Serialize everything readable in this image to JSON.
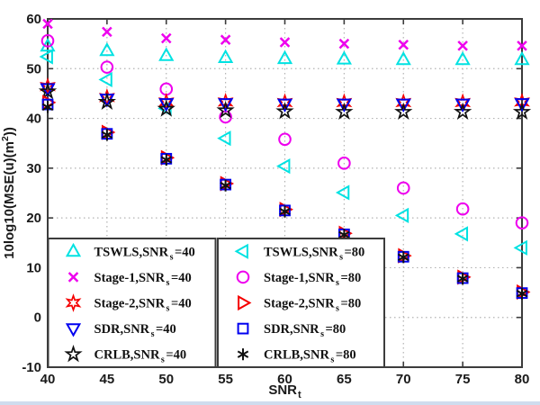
{
  "figure": {
    "background": "#ffffff",
    "frame_color": "#3c3c3c",
    "grid_color": "#b2b2b2",
    "text_color": "#1a1a1a",
    "window_edge_color": "#cfdcee"
  },
  "chart_data": {
    "type": "scatter",
    "title": "",
    "xlabel": {
      "pre": "SNR",
      "sub": "t"
    },
    "ylabel": {
      "pre": "10log10(MSE(u)(m",
      "sup": "2",
      "post": "))"
    },
    "xlim": [
      40,
      80
    ],
    "ylim": [
      -10,
      60
    ],
    "xticks": [
      40,
      45,
      50,
      55,
      60,
      65,
      70,
      75,
      80
    ],
    "yticks": [
      -10,
      0,
      10,
      20,
      30,
      40,
      50,
      60
    ],
    "grid": true,
    "x": [
      40,
      45,
      50,
      55,
      60,
      65,
      70,
      75,
      80
    ],
    "series": [
      {
        "id": "tswls-snrs40",
        "name": "TSWLS,SNR_s=40",
        "label": {
          "pre": "TSWLS,SNR",
          "sub": "s",
          "post": "=40"
        },
        "marker": "triangle-up",
        "color": "#00e2e2",
        "values": [
          54.5,
          53.6,
          52.6,
          52.2,
          52.0,
          51.9,
          51.8,
          51.8,
          51.8
        ]
      },
      {
        "id": "stage1-snrs40",
        "name": "Stage-1,SNR_s=40",
        "label": {
          "pre": "Stage-1,SNR",
          "sub": "s",
          "post": "=40"
        },
        "marker": "cross",
        "color": "#ee00ee",
        "values": [
          59.0,
          57.4,
          56.1,
          55.8,
          55.3,
          55.0,
          54.8,
          54.6,
          54.6
        ]
      },
      {
        "id": "stage2-snrs40",
        "name": "Stage-2,SNR_s=40",
        "label": {
          "pre": "Stage-2,SNR",
          "sub": "s",
          "post": "=40"
        },
        "marker": "hexagram",
        "color": "#f50000",
        "values": [
          46.4,
          44.2,
          43.3,
          43.3,
          43.2,
          43.2,
          43.2,
          43.2,
          43.3
        ]
      },
      {
        "id": "sdr-snrs40",
        "name": "SDR,SNR_s=40",
        "label": {
          "pre": "SDR,SNR",
          "sub": "s",
          "post": "=40"
        },
        "marker": "triangle-down",
        "color": "#0000f0",
        "values": [
          46.0,
          43.9,
          43.0,
          43.0,
          42.9,
          42.9,
          42.9,
          42.9,
          43.0
        ]
      },
      {
        "id": "crlb-snrs40",
        "name": "CRLB,SNR_s=40",
        "label": {
          "pre": "CRLB,SNR",
          "sub": "s",
          "post": "=40"
        },
        "marker": "pentagram",
        "color": "#111111",
        "values": [
          45.4,
          43.3,
          41.9,
          41.6,
          41.4,
          41.3,
          41.3,
          41.3,
          41.3
        ]
      },
      {
        "id": "tswls-snrs80",
        "name": "TSWLS,SNR_s=80",
        "label": {
          "pre": "TSWLS,SNR",
          "sub": "s",
          "post": "=80"
        },
        "marker": "triangle-left",
        "color": "#00e2e2",
        "values": [
          52.4,
          47.8,
          42.0,
          36.0,
          30.4,
          25.1,
          20.5,
          16.8,
          14.0
        ]
      },
      {
        "id": "stage1-snrs80",
        "name": "Stage-1,SNR_s=80",
        "label": {
          "pre": "Stage-1,SNR",
          "sub": "s",
          "post": "=80"
        },
        "marker": "circle",
        "color": "#ee00ee",
        "values": [
          55.6,
          50.3,
          45.9,
          40.3,
          35.8,
          31.0,
          26.0,
          21.8,
          19.0
        ]
      },
      {
        "id": "stage2-snrs80",
        "name": "Stage-2,SNR_s=80",
        "label": {
          "pre": "Stage-2,SNR",
          "sub": "s",
          "post": "=80"
        },
        "marker": "triangle-right",
        "color": "#f50000",
        "values": [
          43.2,
          37.2,
          32.1,
          26.9,
          21.7,
          16.9,
          12.4,
          8.1,
          5.1
        ]
      },
      {
        "id": "sdr-snrs80",
        "name": "SDR,SNR_s=80",
        "label": {
          "pre": "SDR,SNR",
          "sub": "s",
          "post": "=80"
        },
        "marker": "square",
        "color": "#0000f0",
        "values": [
          42.8,
          36.9,
          31.9,
          26.7,
          21.5,
          16.7,
          12.2,
          7.9,
          4.9
        ]
      },
      {
        "id": "crlb-snrs80",
        "name": "CRLB,SNR_s=80",
        "label": {
          "pre": "CRLB,SNR",
          "sub": "s",
          "post": "=80"
        },
        "marker": "asterisk",
        "color": "#111111",
        "values": [
          42.3,
          36.7,
          31.7,
          26.5,
          21.3,
          16.6,
          12.1,
          7.8,
          4.8
        ]
      }
    ],
    "legend": {
      "position": "bottom-left",
      "boxes": [
        {
          "series": [
            0,
            1,
            2,
            3,
            4
          ]
        },
        {
          "series": [
            5,
            6,
            7,
            8,
            9
          ]
        }
      ]
    }
  }
}
